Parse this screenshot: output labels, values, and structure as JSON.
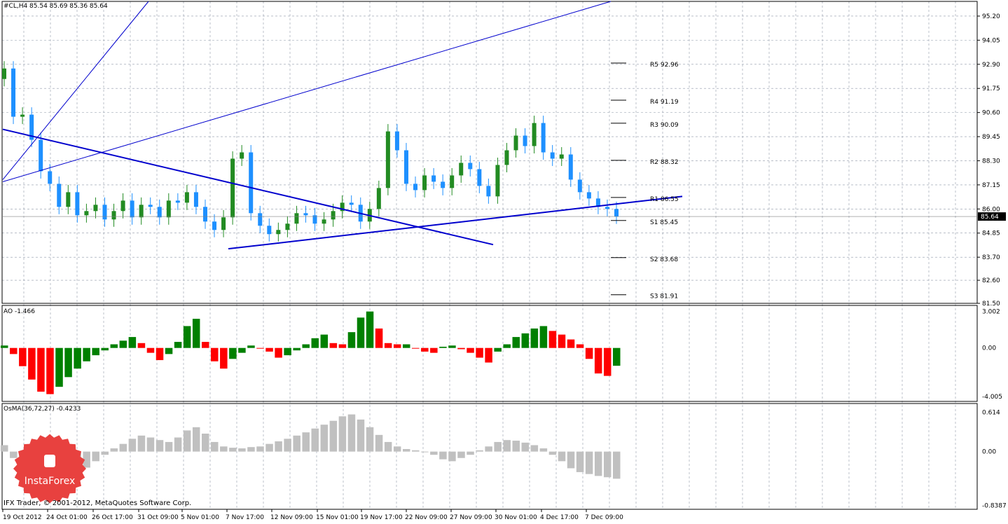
{
  "header": {
    "symbol_line": "#CL,H4  85.54 85.69 85.36 85.64"
  },
  "price_axis": {
    "labels": [
      "95.20",
      "94.05",
      "92.90",
      "91.75",
      "90.60",
      "89.45",
      "88.30",
      "87.15",
      "86.00",
      "84.85",
      "83.70",
      "82.60",
      "81.50"
    ],
    "current_price": "85.64"
  },
  "pivot_levels": [
    {
      "label": "R5 92.96",
      "price": 92.96
    },
    {
      "label": "R4 91.19",
      "price": 91.19
    },
    {
      "label": "R3 90.09",
      "price": 90.09
    },
    {
      "label": "R2 88.32",
      "price": 88.32
    },
    {
      "label": "R1 86.55",
      "price": 86.55
    },
    {
      "label": "S1 85.45",
      "price": 85.45
    },
    {
      "label": "S2 83.68",
      "price": 83.68
    },
    {
      "label": "S3 81.91",
      "price": 81.91
    }
  ],
  "ao_panel": {
    "title": "AO -1.466",
    "axis_labels": [
      "3.002",
      "0.00",
      "-4.005"
    ]
  },
  "osma_panel": {
    "title": "OsMA(36,72,27) -0.4233",
    "axis_labels": [
      "0.614",
      "0.00",
      "-0.8387"
    ]
  },
  "time_axis": {
    "labels": [
      "19 Oct 2012",
      "24 Oct 01:00",
      "26 Oct 17:00",
      "31 Oct 09:00",
      "5 Nov 01:00",
      "7 Nov 17:00",
      "12 Nov 09:00",
      "15 Nov 01:00",
      "19 Nov 17:00",
      "22 Nov 09:00",
      "27 Nov 09:00",
      "30 Nov 01:00",
      "4 Dec 17:00",
      "7 Dec 09:00"
    ]
  },
  "footer": {
    "copyright": "IFX Trader, © 2001-2012, MetaQuotes Software Corp."
  },
  "logo": {
    "brand": "InstaForex"
  },
  "colors": {
    "bull_candle": "#228b22",
    "bear_candle": "#1e90ff",
    "ao_up": "#008000",
    "ao_down": "#ff0000",
    "osma": "#c0c0c0",
    "trendline": "#0000cd",
    "grid": "#8f98a8",
    "logo": "#e8413f"
  },
  "chart_data": {
    "type": "candlestick",
    "price_closes": [
      92.7,
      90.4,
      90.5,
      89.3,
      87.8,
      87.2,
      86.1,
      86.8,
      85.7,
      85.9,
      86.2,
      85.5,
      85.9,
      86.4,
      85.6,
      86.2,
      86.1,
      85.6,
      86.4,
      86.3,
      86.8,
      86.1,
      85.4,
      85.0,
      85.6,
      88.4,
      88.7,
      85.8,
      85.2,
      84.8,
      85.0,
      85.3,
      85.8,
      85.7,
      85.3,
      85.5,
      85.9,
      86.3,
      86.2,
      85.4,
      86.0,
      87.0,
      89.7,
      88.8,
      87.2,
      86.9,
      87.6,
      87.3,
      87.0,
      87.6,
      88.2,
      87.9,
      87.1,
      86.6,
      88.1,
      88.8,
      89.5,
      89.0,
      90.1,
      88.7,
      88.4,
      88.6,
      87.4,
      86.8,
      86.5,
      86.1,
      86.0,
      85.64
    ],
    "ao_values": [
      0.2,
      -0.5,
      -1.5,
      -2.6,
      -3.6,
      -3.8,
      -3.2,
      -2.4,
      -1.7,
      -1.1,
      -0.6,
      -0.2,
      0.3,
      0.6,
      0.9,
      0.4,
      -0.4,
      -1.0,
      -0.5,
      0.5,
      1.8,
      2.4,
      0.5,
      -1.1,
      -1.7,
      -0.9,
      -0.4,
      0.2,
      0.0,
      -0.3,
      -0.8,
      -0.6,
      -0.2,
      0.3,
      0.8,
      1.1,
      0.4,
      0.3,
      1.3,
      2.5,
      3.0,
      1.6,
      0.4,
      0.3,
      0.3,
      0.0,
      -0.3,
      -0.4,
      0.1,
      0.2,
      -0.1,
      -0.4,
      -0.8,
      -1.2,
      -0.3,
      0.3,
      0.9,
      1.2,
      1.6,
      1.8,
      1.4,
      1.1,
      0.7,
      0.3,
      -0.9,
      -2.1,
      -2.3,
      -1.466
    ],
    "osma_values": [
      0.1,
      -0.1,
      -0.3,
      -0.45,
      -0.55,
      -0.6,
      -0.55,
      -0.45,
      -0.35,
      -0.25,
      -0.15,
      -0.05,
      0.05,
      0.12,
      0.2,
      0.25,
      0.22,
      0.18,
      0.15,
      0.22,
      0.33,
      0.38,
      0.28,
      0.15,
      0.08,
      0.06,
      0.05,
      0.07,
      0.08,
      0.12,
      0.16,
      0.2,
      0.25,
      0.3,
      0.36,
      0.42,
      0.48,
      0.55,
      0.58,
      0.5,
      0.38,
      0.26,
      0.15,
      0.08,
      0.04,
      0.02,
      0.0,
      -0.05,
      -0.12,
      -0.15,
      -0.1,
      -0.05,
      0.02,
      0.08,
      0.15,
      0.18,
      0.17,
      0.14,
      0.1,
      0.05,
      -0.05,
      -0.15,
      -0.26,
      -0.32,
      -0.35,
      -0.38,
      -0.4,
      -0.4233
    ],
    "price_range": [
      81.5,
      95.9
    ],
    "ao_range": [
      -4.4,
      3.5
    ],
    "osma_range": [
      -0.9,
      0.75
    ],
    "grid": true
  }
}
